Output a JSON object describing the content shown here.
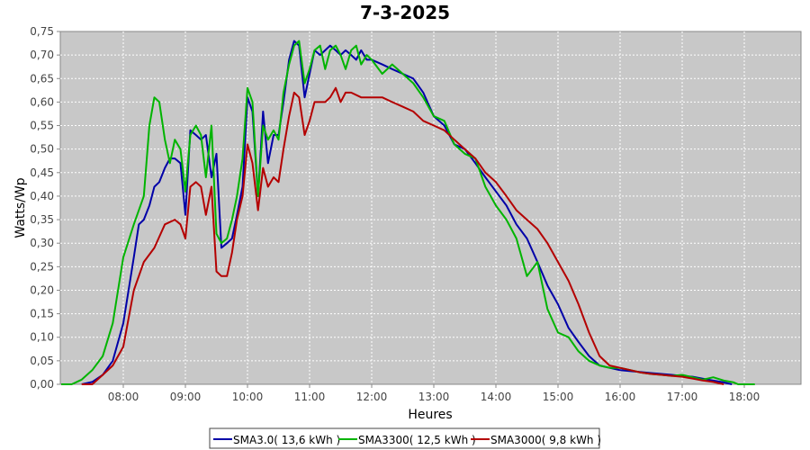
{
  "chart_data": {
    "type": "line",
    "title": "7-3-2025",
    "xlabel": "Heures",
    "ylabel": "Watts/Wp",
    "xlim": [
      7.0,
      19.0
    ],
    "ylim": [
      0.0,
      0.75
    ],
    "xticks": [
      "08:00",
      "09:00",
      "10:00",
      "11:00",
      "12:00",
      "13:00",
      "14:00",
      "15:00",
      "16:00",
      "17:00",
      "18:00"
    ],
    "yticks": [
      "0,00",
      "0,05",
      "0,10",
      "0,15",
      "0,20",
      "0,25",
      "0,30",
      "0,35",
      "0,40",
      "0,45",
      "0,50",
      "0,55",
      "0,60",
      "0,65",
      "0,70",
      "0,75"
    ],
    "grid": true,
    "legend_position": "bottom",
    "background": "#c8c8c8",
    "series": [
      {
        "name": "SMA3.0( 13,6 kWh )",
        "color": "#0000a8",
        "points": [
          [
            7.33,
            0.0
          ],
          [
            7.5,
            0.005
          ],
          [
            7.67,
            0.02
          ],
          [
            7.83,
            0.05
          ],
          [
            8.0,
            0.13
          ],
          [
            8.17,
            0.27
          ],
          [
            8.25,
            0.34
          ],
          [
            8.33,
            0.35
          ],
          [
            8.42,
            0.38
          ],
          [
            8.5,
            0.42
          ],
          [
            8.58,
            0.43
          ],
          [
            8.67,
            0.46
          ],
          [
            8.75,
            0.48
          ],
          [
            8.83,
            0.48
          ],
          [
            8.92,
            0.47
          ],
          [
            9.0,
            0.36
          ],
          [
            9.08,
            0.54
          ],
          [
            9.17,
            0.53
          ],
          [
            9.25,
            0.52
          ],
          [
            9.33,
            0.53
          ],
          [
            9.42,
            0.44
          ],
          [
            9.5,
            0.49
          ],
          [
            9.58,
            0.29
          ],
          [
            9.67,
            0.3
          ],
          [
            9.75,
            0.31
          ],
          [
            9.83,
            0.36
          ],
          [
            9.92,
            0.42
          ],
          [
            10.0,
            0.61
          ],
          [
            10.08,
            0.58
          ],
          [
            10.17,
            0.4
          ],
          [
            10.25,
            0.58
          ],
          [
            10.33,
            0.47
          ],
          [
            10.42,
            0.53
          ],
          [
            10.5,
            0.53
          ],
          [
            10.58,
            0.6
          ],
          [
            10.67,
            0.69
          ],
          [
            10.75,
            0.73
          ],
          [
            10.83,
            0.72
          ],
          [
            10.92,
            0.61
          ],
          [
            11.0,
            0.66
          ],
          [
            11.08,
            0.71
          ],
          [
            11.17,
            0.7
          ],
          [
            11.25,
            0.71
          ],
          [
            11.33,
            0.72
          ],
          [
            11.42,
            0.71
          ],
          [
            11.5,
            0.7
          ],
          [
            11.58,
            0.71
          ],
          [
            11.67,
            0.7
          ],
          [
            11.75,
            0.69
          ],
          [
            11.83,
            0.71
          ],
          [
            11.92,
            0.69
          ],
          [
            12.0,
            0.69
          ],
          [
            12.17,
            0.68
          ],
          [
            12.33,
            0.67
          ],
          [
            12.5,
            0.66
          ],
          [
            12.67,
            0.65
          ],
          [
            12.83,
            0.62
          ],
          [
            13.0,
            0.57
          ],
          [
            13.17,
            0.55
          ],
          [
            13.33,
            0.51
          ],
          [
            13.5,
            0.5
          ],
          [
            13.67,
            0.47
          ],
          [
            13.83,
            0.44
          ],
          [
            14.0,
            0.41
          ],
          [
            14.17,
            0.38
          ],
          [
            14.33,
            0.34
          ],
          [
            14.5,
            0.31
          ],
          [
            14.67,
            0.26
          ],
          [
            14.83,
            0.21
          ],
          [
            15.0,
            0.17
          ],
          [
            15.17,
            0.12
          ],
          [
            15.33,
            0.09
          ],
          [
            15.5,
            0.06
          ],
          [
            15.67,
            0.04
          ],
          [
            15.83,
            0.035
          ],
          [
            16.0,
            0.03
          ],
          [
            16.17,
            0.028
          ],
          [
            16.33,
            0.026
          ],
          [
            16.5,
            0.024
          ],
          [
            16.67,
            0.022
          ],
          [
            16.83,
            0.02
          ],
          [
            17.0,
            0.018
          ],
          [
            17.17,
            0.016
          ],
          [
            17.33,
            0.012
          ],
          [
            17.5,
            0.008
          ],
          [
            17.67,
            0.004
          ],
          [
            17.8,
            0.0
          ]
        ]
      },
      {
        "name": "SMA3300( 12,5 kWh )",
        "color": "#00b400",
        "points": [
          [
            7.0,
            0.0
          ],
          [
            7.17,
            0.0
          ],
          [
            7.33,
            0.01
          ],
          [
            7.5,
            0.03
          ],
          [
            7.67,
            0.06
          ],
          [
            7.83,
            0.13
          ],
          [
            8.0,
            0.27
          ],
          [
            8.17,
            0.34
          ],
          [
            8.33,
            0.4
          ],
          [
            8.42,
            0.55
          ],
          [
            8.5,
            0.61
          ],
          [
            8.58,
            0.6
          ],
          [
            8.67,
            0.52
          ],
          [
            8.75,
            0.47
          ],
          [
            8.83,
            0.52
          ],
          [
            8.92,
            0.5
          ],
          [
            9.0,
            0.41
          ],
          [
            9.08,
            0.53
          ],
          [
            9.17,
            0.55
          ],
          [
            9.25,
            0.53
          ],
          [
            9.33,
            0.44
          ],
          [
            9.42,
            0.55
          ],
          [
            9.5,
            0.32
          ],
          [
            9.58,
            0.3
          ],
          [
            9.67,
            0.31
          ],
          [
            9.75,
            0.35
          ],
          [
            9.83,
            0.4
          ],
          [
            9.92,
            0.48
          ],
          [
            10.0,
            0.63
          ],
          [
            10.08,
            0.6
          ],
          [
            10.17,
            0.4
          ],
          [
            10.25,
            0.55
          ],
          [
            10.33,
            0.52
          ],
          [
            10.42,
            0.54
          ],
          [
            10.5,
            0.52
          ],
          [
            10.58,
            0.62
          ],
          [
            10.67,
            0.68
          ],
          [
            10.75,
            0.72
          ],
          [
            10.83,
            0.73
          ],
          [
            10.92,
            0.64
          ],
          [
            11.0,
            0.67
          ],
          [
            11.08,
            0.71
          ],
          [
            11.17,
            0.72
          ],
          [
            11.25,
            0.67
          ],
          [
            11.33,
            0.71
          ],
          [
            11.42,
            0.72
          ],
          [
            11.5,
            0.7
          ],
          [
            11.58,
            0.67
          ],
          [
            11.67,
            0.71
          ],
          [
            11.75,
            0.72
          ],
          [
            11.83,
            0.68
          ],
          [
            11.92,
            0.7
          ],
          [
            12.0,
            0.69
          ],
          [
            12.17,
            0.66
          ],
          [
            12.33,
            0.68
          ],
          [
            12.5,
            0.66
          ],
          [
            12.67,
            0.64
          ],
          [
            12.83,
            0.61
          ],
          [
            13.0,
            0.57
          ],
          [
            13.17,
            0.56
          ],
          [
            13.33,
            0.51
          ],
          [
            13.5,
            0.49
          ],
          [
            13.67,
            0.48
          ],
          [
            13.83,
            0.42
          ],
          [
            14.0,
            0.38
          ],
          [
            14.17,
            0.35
          ],
          [
            14.33,
            0.31
          ],
          [
            14.5,
            0.23
          ],
          [
            14.67,
            0.26
          ],
          [
            14.83,
            0.16
          ],
          [
            15.0,
            0.11
          ],
          [
            15.17,
            0.1
          ],
          [
            15.33,
            0.07
          ],
          [
            15.5,
            0.05
          ],
          [
            15.67,
            0.04
          ],
          [
            15.83,
            0.035
          ],
          [
            16.0,
            0.035
          ],
          [
            16.17,
            0.03
          ],
          [
            16.33,
            0.025
          ],
          [
            16.5,
            0.022
          ],
          [
            16.67,
            0.02
          ],
          [
            16.83,
            0.018
          ],
          [
            17.0,
            0.02
          ],
          [
            17.17,
            0.015
          ],
          [
            17.33,
            0.01
          ],
          [
            17.5,
            0.015
          ],
          [
            17.67,
            0.008
          ],
          [
            17.83,
            0.004
          ],
          [
            17.9,
            0.0
          ],
          [
            18.17,
            0.0
          ]
        ]
      },
      {
        "name": "SMA3000( 9,8 kWh )",
        "color": "#b40000",
        "points": [
          [
            7.33,
            0.0
          ],
          [
            7.5,
            0.0
          ],
          [
            7.67,
            0.02
          ],
          [
            7.83,
            0.04
          ],
          [
            8.0,
            0.08
          ],
          [
            8.17,
            0.2
          ],
          [
            8.33,
            0.26
          ],
          [
            8.5,
            0.29
          ],
          [
            8.67,
            0.34
          ],
          [
            8.83,
            0.35
          ],
          [
            8.92,
            0.34
          ],
          [
            9.0,
            0.31
          ],
          [
            9.08,
            0.42
          ],
          [
            9.17,
            0.43
          ],
          [
            9.25,
            0.42
          ],
          [
            9.33,
            0.36
          ],
          [
            9.42,
            0.42
          ],
          [
            9.5,
            0.24
          ],
          [
            9.58,
            0.23
          ],
          [
            9.67,
            0.23
          ],
          [
            9.75,
            0.28
          ],
          [
            9.83,
            0.35
          ],
          [
            9.92,
            0.4
          ],
          [
            10.0,
            0.51
          ],
          [
            10.08,
            0.47
          ],
          [
            10.17,
            0.37
          ],
          [
            10.25,
            0.46
          ],
          [
            10.33,
            0.42
          ],
          [
            10.42,
            0.44
          ],
          [
            10.5,
            0.43
          ],
          [
            10.58,
            0.5
          ],
          [
            10.67,
            0.57
          ],
          [
            10.75,
            0.62
          ],
          [
            10.83,
            0.61
          ],
          [
            10.92,
            0.53
          ],
          [
            11.0,
            0.56
          ],
          [
            11.08,
            0.6
          ],
          [
            11.17,
            0.6
          ],
          [
            11.25,
            0.6
          ],
          [
            11.33,
            0.61
          ],
          [
            11.42,
            0.63
          ],
          [
            11.5,
            0.6
          ],
          [
            11.58,
            0.62
          ],
          [
            11.67,
            0.62
          ],
          [
            11.83,
            0.61
          ],
          [
            12.0,
            0.61
          ],
          [
            12.17,
            0.61
          ],
          [
            12.33,
            0.6
          ],
          [
            12.5,
            0.59
          ],
          [
            12.67,
            0.58
          ],
          [
            12.83,
            0.56
          ],
          [
            13.0,
            0.55
          ],
          [
            13.17,
            0.54
          ],
          [
            13.33,
            0.52
          ],
          [
            13.5,
            0.5
          ],
          [
            13.67,
            0.48
          ],
          [
            13.83,
            0.45
          ],
          [
            14.0,
            0.43
          ],
          [
            14.17,
            0.4
          ],
          [
            14.33,
            0.37
          ],
          [
            14.5,
            0.35
          ],
          [
            14.67,
            0.33
          ],
          [
            14.83,
            0.3
          ],
          [
            15.0,
            0.26
          ],
          [
            15.17,
            0.22
          ],
          [
            15.33,
            0.17
          ],
          [
            15.5,
            0.11
          ],
          [
            15.67,
            0.06
          ],
          [
            15.83,
            0.04
          ],
          [
            16.0,
            0.035
          ],
          [
            16.17,
            0.03
          ],
          [
            16.33,
            0.025
          ],
          [
            16.5,
            0.022
          ],
          [
            16.67,
            0.02
          ],
          [
            16.83,
            0.018
          ],
          [
            17.0,
            0.016
          ],
          [
            17.17,
            0.012
          ],
          [
            17.33,
            0.008
          ],
          [
            17.5,
            0.005
          ],
          [
            17.67,
            0.0
          ]
        ]
      }
    ]
  }
}
